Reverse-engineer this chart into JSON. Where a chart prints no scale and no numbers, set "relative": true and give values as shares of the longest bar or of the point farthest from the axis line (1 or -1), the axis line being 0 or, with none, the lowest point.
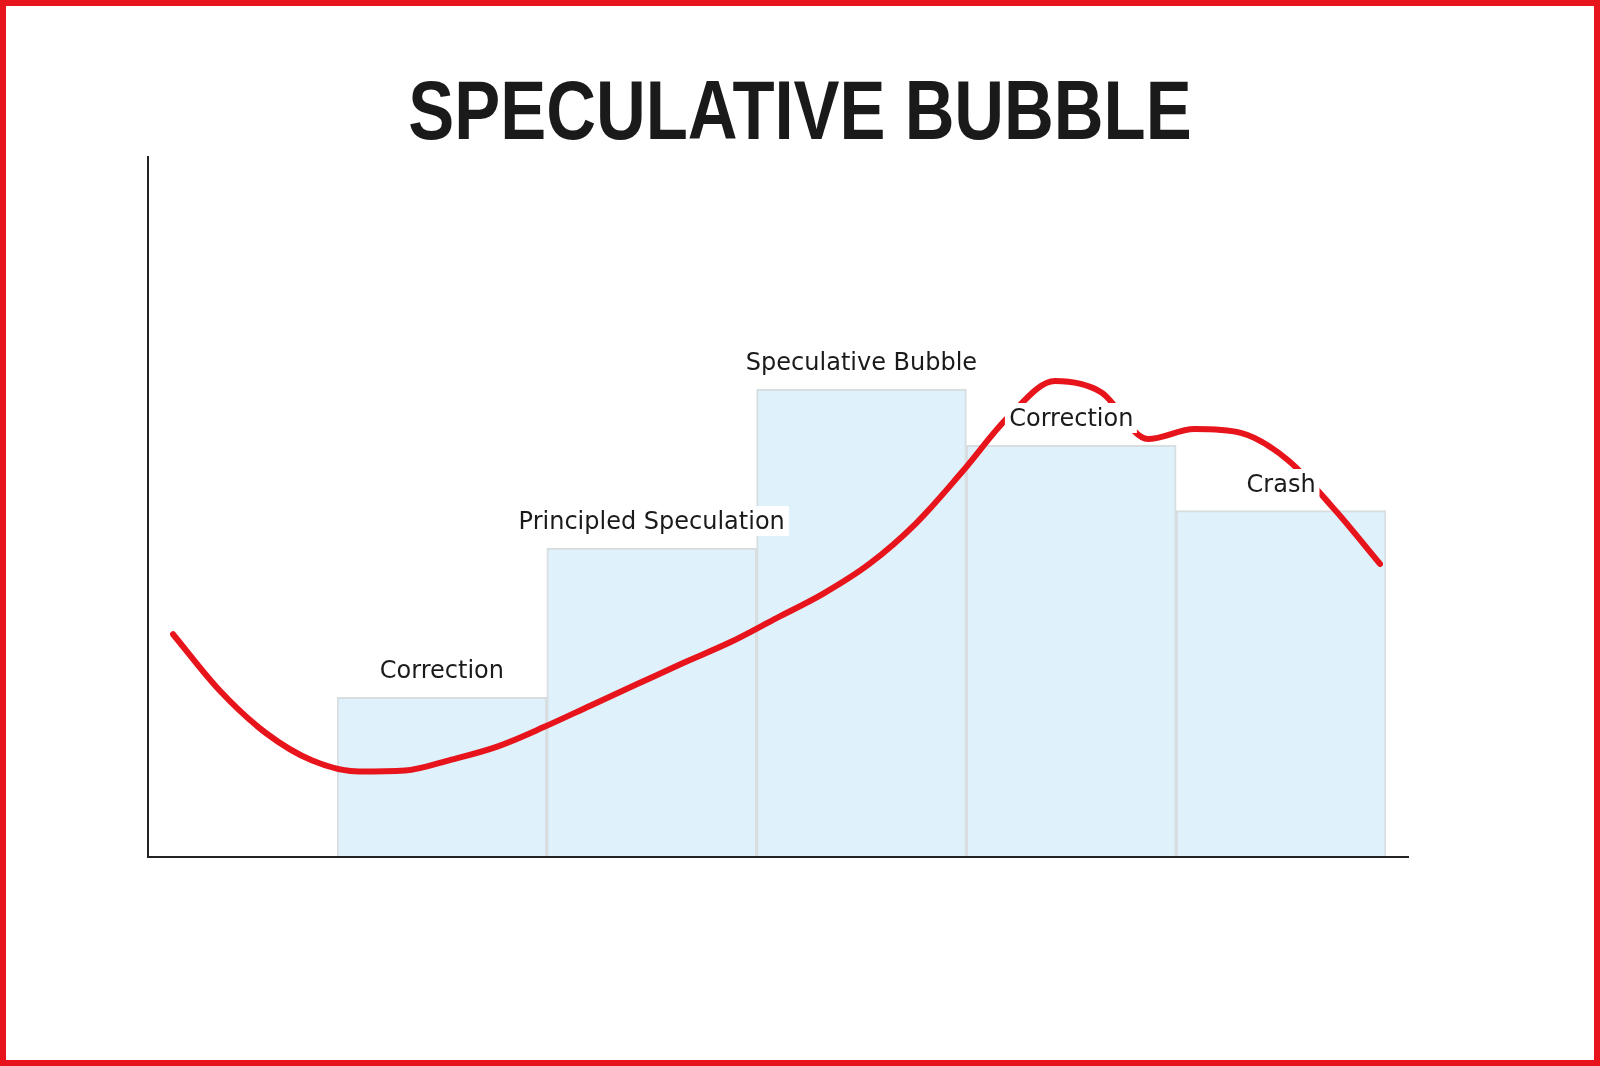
{
  "chart_data": [
    {
      "type": "bar",
      "relative": true,
      "title": "SPECULATIVE BUBBLE",
      "categories": [
        "Correction",
        "Principled Speculation",
        "Speculative Bubble",
        "Correction",
        "Crash"
      ],
      "values": [
        0.34,
        0.66,
        1,
        0.88,
        0.74
      ],
      "color": "#dff1fb"
    },
    {
      "type": "line",
      "relative": true,
      "categories": [
        null,
        null,
        null,
        null,
        null,
        null,
        null,
        null,
        null,
        null,
        null,
        null,
        null,
        null,
        null,
        null,
        null,
        null,
        null,
        null,
        null,
        null,
        null,
        null,
        null,
        null,
        null
      ],
      "values": [
        0.467,
        0.349,
        0.259,
        0.201,
        0.178,
        0.18,
        0.203,
        0.231,
        0.272,
        0.317,
        0.362,
        0.407,
        0.45,
        0.501,
        0.552,
        0.615,
        0.7,
        0.809,
        0.925,
        1,
        0.976,
        0.878,
        0.899,
        0.891,
        0.835,
        0.732,
        0.615
      ],
      "color": "#e8141c"
    }
  ]
}
